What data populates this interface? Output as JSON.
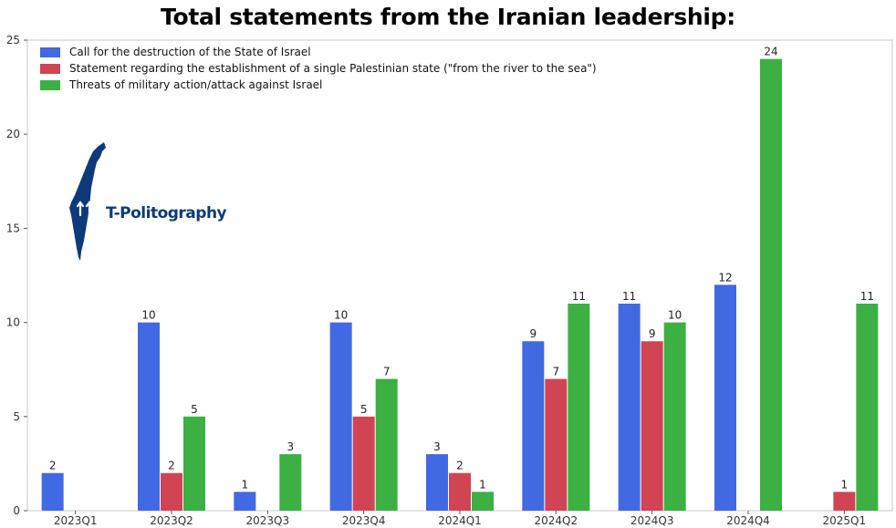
{
  "page": {
    "title": "Total statements from the Iranian leadership:"
  },
  "logo": {
    "text": "T-Politography"
  },
  "colors": {
    "series_1": "#4169e1",
    "series_2": "#d04454",
    "series_3": "#3cb043",
    "logo": "#0d3a78"
  },
  "chart_data": {
    "type": "bar",
    "title": "Total statements from the Iranian leadership:",
    "xlabel": "",
    "ylabel": "",
    "ylim": [
      0,
      25
    ],
    "yticks": [
      0,
      5,
      10,
      15,
      20,
      25
    ],
    "grid": false,
    "legend_position": "top-left",
    "categories": [
      "2023Q1",
      "2023Q2",
      "2023Q3",
      "2023Q4",
      "2024Q1",
      "2024Q2",
      "2024Q3",
      "2024Q4",
      "2025Q1"
    ],
    "series": [
      {
        "name": "Call for the destruction of the State of Israel",
        "color": "#4169e1",
        "values": [
          2,
          10,
          1,
          10,
          3,
          9,
          11,
          12,
          null
        ]
      },
      {
        "name": "Statement regarding the establishment of a single Palestinian state (\"from the river to the sea\")",
        "color": "#d04454",
        "values": [
          null,
          2,
          null,
          5,
          2,
          7,
          9,
          null,
          1
        ]
      },
      {
        "name": "Threats of military action/attack against Israel",
        "color": "#3cb043",
        "values": [
          null,
          5,
          3,
          7,
          1,
          11,
          10,
          24,
          11
        ]
      }
    ]
  }
}
